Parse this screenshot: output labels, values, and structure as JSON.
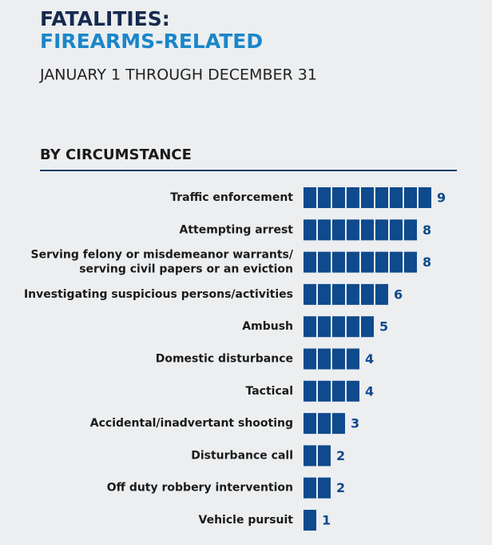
{
  "chart_data": {
    "type": "unit-bar",
    "title": [
      "FATALITIES:",
      "FIREARMS-RELATED"
    ],
    "subtitle": "JANUARY 1 THROUGH DECEMBER 31",
    "section_title": "BY CIRCUMSTANCE",
    "categories": [
      "Traffic enforcement",
      "Attempting arrest",
      [
        "Serving felony or misdemeanor warrants/",
        "serving civil papers or an eviction"
      ],
      "Investigating suspicious persons/activities",
      "Ambush",
      "Domestic disturbance",
      "Tactical",
      "Accidental/inadvertant shooting",
      "Disturbance call",
      "Off duty robbery intervention",
      "Vehicle pursuit"
    ],
    "values": [
      9,
      8,
      8,
      6,
      5,
      4,
      4,
      3,
      2,
      2,
      1
    ],
    "color": "#0e4a8c"
  }
}
